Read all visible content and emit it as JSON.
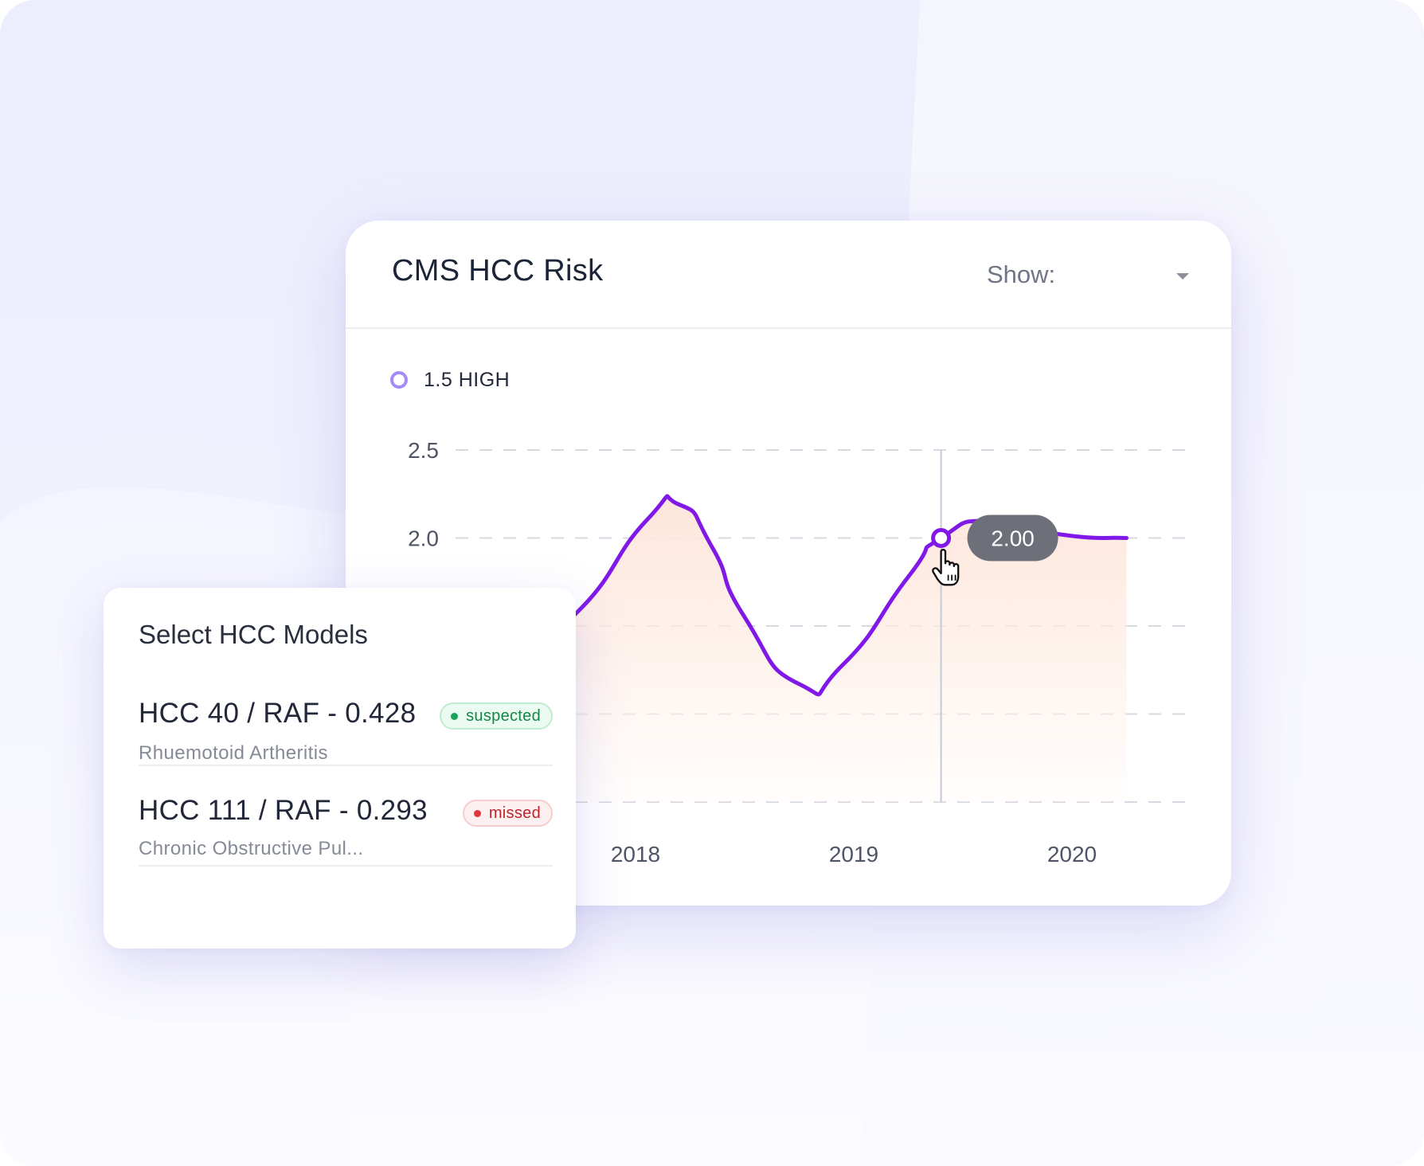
{
  "chart_card": {
    "title": "CMS HCC Risk",
    "show_label": "Show:",
    "show_value": "",
    "legend_label": "1.5 HIGH",
    "tooltip_value": "2.00"
  },
  "chart_data": {
    "type": "area",
    "title": "CMS HCC Risk",
    "xlabel": "",
    "ylabel": "",
    "y_ticks": [
      "2.5",
      "2.0"
    ],
    "x_ticks": [
      "2018",
      "2019",
      "2020"
    ],
    "ylim": [
      0.5,
      2.5
    ],
    "grid": true,
    "legend": "top-left",
    "series": [
      {
        "name": "1.5 HIGH",
        "x": [
          2017.35,
          2017.55,
          2017.75,
          2018.05,
          2018.2,
          2018.35,
          2018.5,
          2018.75,
          2018.95,
          2019.25,
          2019.4,
          2019.65,
          2019.95,
          2020.25
        ],
        "values": [
          1.5,
          1.47,
          1.6,
          2.1,
          2.19,
          1.95,
          1.55,
          1.17,
          1.28,
          1.78,
          2.0,
          2.1,
          2.02,
          2.0
        ]
      }
    ],
    "highlight": {
      "x": 2019.4,
      "value": 2.0,
      "label": "2.00"
    }
  },
  "models_card": {
    "title": "Select HCC Models",
    "items": [
      {
        "name": "HCC 40 / RAF - 0.428",
        "desc": "Rhuemotoid Artheritis",
        "status": "suspected"
      },
      {
        "name": "HCC 111 / RAF - 0.293",
        "desc": "Chronic Obstructive Pul...",
        "status": "missed"
      }
    ]
  },
  "colors": {
    "line": "#8019e8",
    "fill": "#fde3d7",
    "legend_dot": "#a48bf5",
    "tooltip_bg": "#6e7079",
    "suspected": "#1aa35a",
    "missed": "#e0363c"
  }
}
